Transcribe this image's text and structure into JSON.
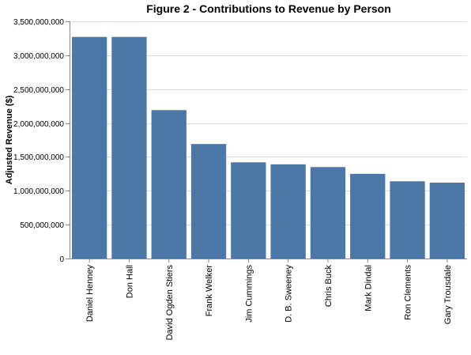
{
  "chart_data": {
    "type": "bar",
    "title": "Figure 2 - Contributions to Revenue by Person",
    "xlabel": "",
    "ylabel": "Adjusted Revenue ($)",
    "ylim": [
      0,
      3500000000
    ],
    "yticks": [
      0,
      500000000,
      1000000000,
      1500000000,
      2000000000,
      2500000000,
      3000000000,
      3500000000
    ],
    "ytick_labels": [
      "0",
      "500,000,000",
      "1,000,000,000",
      "1,500,000,000",
      "2,000,000,000",
      "2,500,000,000",
      "3,000,000,000",
      "3,500,000,000"
    ],
    "categories": [
      "Daniel Henney",
      "Don Hall",
      "David Ogden Stiers",
      "Frank Welker",
      "Jim Cummings",
      "D. B. Sweeney",
      "Chris Buck",
      "Mark Dindal",
      "Ron Clements",
      "Gary Trousdale"
    ],
    "values": [
      3270000000,
      3270000000,
      2190000000,
      1690000000,
      1420000000,
      1390000000,
      1350000000,
      1250000000,
      1140000000,
      1120000000
    ],
    "bar_color": "#4c78a8",
    "grid": true,
    "legend": "none"
  }
}
